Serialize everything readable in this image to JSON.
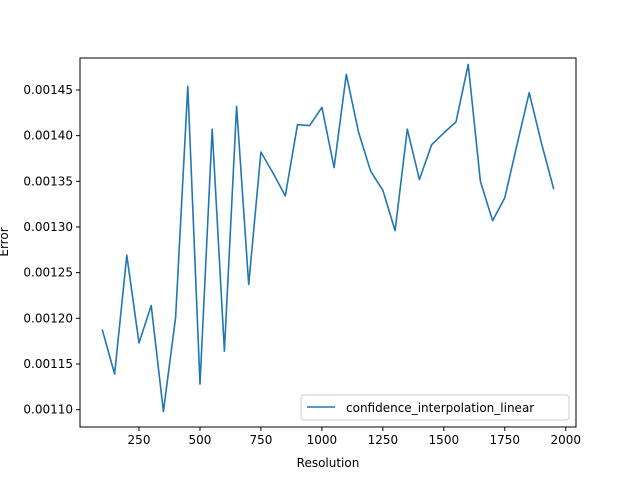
{
  "chart_data": {
    "type": "line",
    "title": "",
    "xlabel": "Resolution",
    "ylabel": "Error",
    "xlim": [
      8,
      2042
    ],
    "ylim": [
      0.001081,
      0.001485
    ],
    "x_ticks": [
      250,
      500,
      750,
      1000,
      1250,
      1500,
      1750,
      2000
    ],
    "x_tick_labels": [
      "250",
      "500",
      "750",
      "1000",
      "1250",
      "1500",
      "1750",
      "2000"
    ],
    "y_ticks": [
      0.0011,
      0.00115,
      0.0012,
      0.00125,
      0.0013,
      0.00135,
      0.0014,
      0.00145
    ],
    "y_tick_labels": [
      "0.00110",
      "0.00115",
      "0.00120",
      "0.00125",
      "0.00130",
      "0.00135",
      "0.00140",
      "0.00145"
    ],
    "grid": false,
    "legend_position": "lower-right",
    "series": [
      {
        "name": "confidence_interpolation_linear",
        "color": "#1f77b4",
        "x": [
          100,
          150,
          200,
          250,
          300,
          350,
          400,
          450,
          500,
          550,
          600,
          650,
          700,
          750,
          800,
          850,
          900,
          950,
          1000,
          1050,
          1100,
          1150,
          1200,
          1250,
          1300,
          1350,
          1400,
          1450,
          1500,
          1550,
          1600,
          1650,
          1700,
          1750,
          1800,
          1850,
          1900,
          1950
        ],
        "y": [
          0.001187,
          0.001139,
          0.001269,
          0.001173,
          0.001214,
          0.001098,
          0.001201,
          0.001454,
          0.001128,
          0.001407,
          0.001164,
          0.001432,
          0.001237,
          0.001382,
          0.001359,
          0.001334,
          0.001412,
          0.001411,
          0.001431,
          0.001365,
          0.001467,
          0.001404,
          0.001361,
          0.00134,
          0.001296,
          0.001407,
          0.001352,
          0.00139,
          0.001403,
          0.001415,
          0.001478,
          0.00135,
          0.001307,
          0.001332,
          0.00139,
          0.001447,
          0.001392,
          0.001342
        ]
      }
    ]
  }
}
